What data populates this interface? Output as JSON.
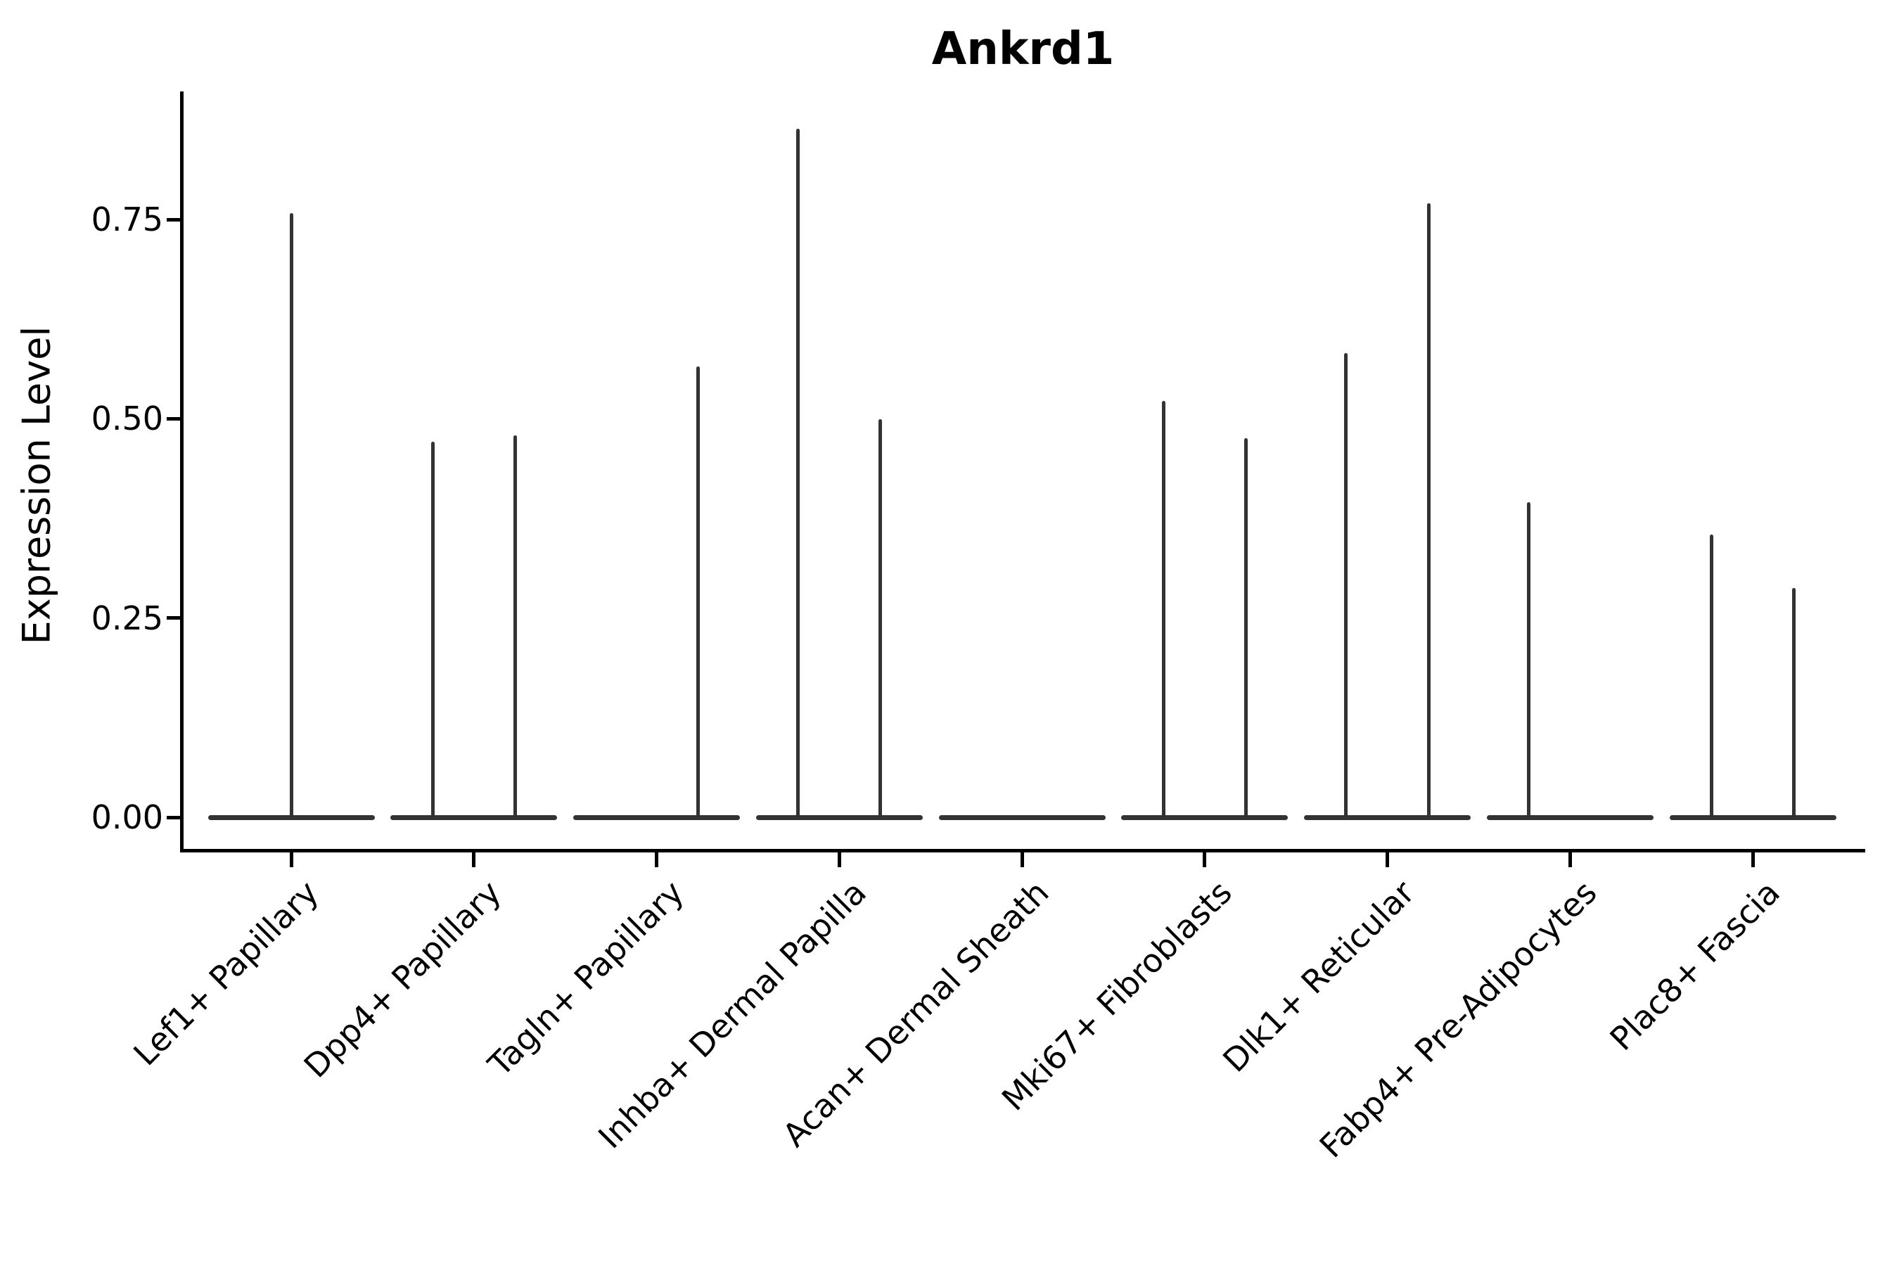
{
  "title": "Ankrd1",
  "y_axis": {
    "label": "Expression Level",
    "tick_labels": [
      "0.00",
      "0.25",
      "0.50",
      "0.75"
    ],
    "tick_values": [
      0.0,
      0.25,
      0.5,
      0.75
    ]
  },
  "chart_data": {
    "type": "violin",
    "title": "Ankrd1",
    "xlabel": "",
    "ylabel": "Expression Level",
    "ylim": [
      -0.04,
      0.91
    ],
    "yticks": [
      0.0,
      0.25,
      0.5,
      0.75
    ],
    "ytick_labels": [
      "0.00",
      "0.25",
      "0.50",
      "0.75"
    ],
    "grid": false,
    "legend": "none",
    "x_tick_rotation_deg": 45,
    "violin_color": "#333333",
    "axis_color": "#000000",
    "baseline_value": 0.0,
    "categories": [
      "Lef1+ Papillary",
      "Dpp4+ Papillary",
      "Tagln+ Papillary",
      "Inhba+ Dermal Papilla",
      "Acan+ Dermal Sheath",
      "Mki67+ Fibroblasts",
      "Dlk1+ Reticular",
      "Fabp4+ Pre-Adipocytes",
      "Plac8+ Fascia"
    ],
    "violins": [
      {
        "category": "Lef1+ Papillary",
        "spikes": [
          {
            "side": "center",
            "max": 0.758
          }
        ]
      },
      {
        "category": "Dpp4+ Papillary",
        "spikes": [
          {
            "side": "left",
            "max": 0.471
          },
          {
            "side": "right",
            "max": 0.479
          }
        ]
      },
      {
        "category": "Tagln+ Papillary",
        "spikes": [
          {
            "side": "right",
            "max": 0.566
          }
        ]
      },
      {
        "category": "Inhba+ Dermal Papilla",
        "spikes": [
          {
            "side": "left",
            "max": 0.864
          },
          {
            "side": "right",
            "max": 0.499
          }
        ]
      },
      {
        "category": "Acan+ Dermal Sheath",
        "spikes": []
      },
      {
        "category": "Mki67+ Fibroblasts",
        "spikes": [
          {
            "side": "left",
            "max": 0.522
          },
          {
            "side": "right",
            "max": 0.476
          }
        ]
      },
      {
        "category": "Dlk1+ Reticular",
        "spikes": [
          {
            "side": "left",
            "max": 0.582
          },
          {
            "side": "right",
            "max": 0.77
          }
        ]
      },
      {
        "category": "Fabp4+ Pre-Adipocytes",
        "spikes": [
          {
            "side": "left",
            "max": 0.395
          }
        ]
      },
      {
        "category": "Plac8+ Fascia",
        "spikes": [
          {
            "side": "left",
            "max": 0.355
          },
          {
            "side": "right",
            "max": 0.288
          }
        ]
      }
    ]
  }
}
